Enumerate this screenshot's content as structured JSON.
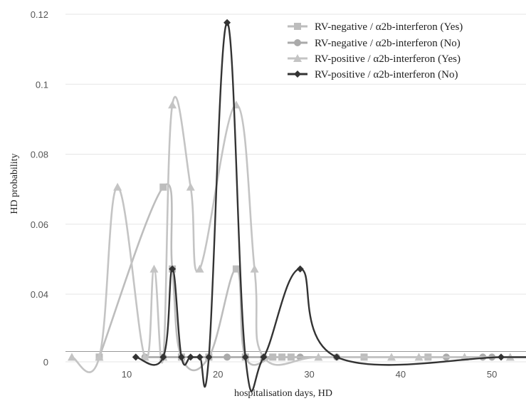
{
  "chart_data": {
    "type": "line",
    "title": "",
    "xlabel": "hospitalisation days, HD",
    "ylabel": "HD probability",
    "xlim": [
      3.3,
      54
    ],
    "ylim": [
      0,
      0.12
    ],
    "xticks": [
      "10",
      "20",
      "30",
      "40",
      "50"
    ],
    "yticks": [
      "0",
      "0.04",
      "0.06",
      "0.08",
      "0.1",
      "0.12"
    ],
    "grid": "horizontal",
    "legend_position": "top-right",
    "series": [
      {
        "name": "RV-negative / α2b-interferon (Yes)",
        "color": "#bdbdbd",
        "marker": "square",
        "points": [
          [
            7,
            0.0028
          ],
          [
            14,
            0.0706
          ],
          [
            15,
            0.0472
          ],
          [
            16,
            0.0028
          ],
          [
            19,
            0.0028
          ],
          [
            22,
            0.0472
          ],
          [
            23,
            0.0028
          ],
          [
            26,
            0.0028
          ],
          [
            27,
            0.0028
          ],
          [
            28,
            0.0028
          ],
          [
            36,
            0.0028
          ],
          [
            43,
            0.0028
          ],
          [
            54,
            0.0028
          ]
        ]
      },
      {
        "name": "RV-negative / α2b-interferon (No)",
        "color": "#aaaaaa",
        "marker": "circle",
        "points": [
          [
            12,
            0.0028
          ],
          [
            14,
            0.0028
          ],
          [
            21,
            0.0028
          ],
          [
            25,
            0.0028
          ],
          [
            29,
            0.0028
          ],
          [
            33,
            0.0028
          ],
          [
            45,
            0.0028
          ],
          [
            49,
            0.0028
          ],
          [
            50,
            0.0028
          ],
          [
            54,
            0.0028
          ]
        ]
      },
      {
        "name": "RV-positive / α2b-interferon (Yes)",
        "color": "#c4c4c4",
        "marker": "triangle",
        "points": [
          [
            4,
            0.0028
          ],
          [
            7,
            0.0028
          ],
          [
            9,
            0.0706
          ],
          [
            12,
            0.0028
          ],
          [
            13,
            0.0472
          ],
          [
            14,
            0.0028
          ],
          [
            15,
            0.0941
          ],
          [
            17,
            0.0706
          ],
          [
            18,
            0.0472
          ],
          [
            22,
            0.0941
          ],
          [
            24,
            0.0472
          ],
          [
            25,
            0.0028
          ],
          [
            31,
            0.0028
          ],
          [
            39,
            0.0028
          ],
          [
            42,
            0.0028
          ],
          [
            47,
            0.0028
          ],
          [
            52,
            0.0028
          ],
          [
            54,
            0.0028
          ]
        ]
      },
      {
        "name": "RV-positive / α2b-interferon (No)",
        "color": "#333333",
        "marker": "diamond",
        "points": [
          [
            11,
            0.0028
          ],
          [
            14,
            0.0028
          ],
          [
            15,
            0.0472
          ],
          [
            16,
            0.0028
          ],
          [
            17,
            0.0028
          ],
          [
            18,
            0.0028
          ],
          [
            19,
            0.0028
          ],
          [
            21,
            0.1176
          ],
          [
            23,
            0.0028
          ],
          [
            25,
            0.0028
          ],
          [
            29,
            0.0472
          ],
          [
            33,
            0.0028
          ],
          [
            51,
            0.0028
          ],
          [
            54,
            0.0028
          ]
        ]
      }
    ]
  }
}
